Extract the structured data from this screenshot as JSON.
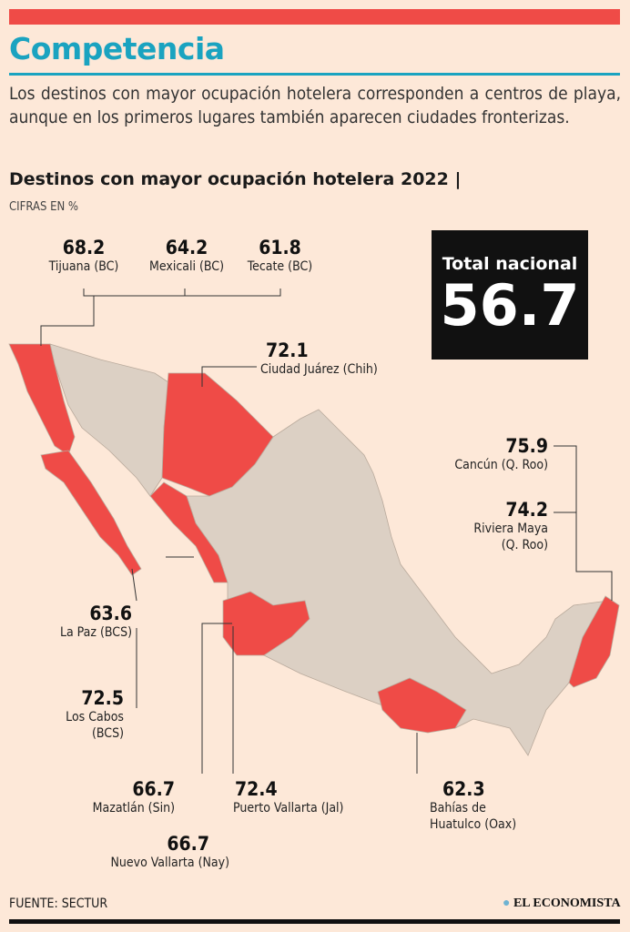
{
  "header": {
    "title": "Competencia",
    "intro": "Los destinos con mayor ocupación hotelera corresponden a centros de playa, aunque en los primeros lugares también aparecen ciudades fronterizas.",
    "subtitle": "Destinos con mayor ocupación hotelera 2022 |",
    "units": "CIFRAS EN %"
  },
  "total": {
    "label": "Total nacional",
    "value": "56.7"
  },
  "destinations": [
    {
      "value": "68.2",
      "name": "Tijuana (BC)"
    },
    {
      "value": "64.2",
      "name": "Mexicali (BC)"
    },
    {
      "value": "61.8",
      "name": "Tecate (BC)"
    },
    {
      "value": "72.1",
      "name": "Ciudad Juárez (Chih)"
    },
    {
      "value": "75.9",
      "name": "Cancún (Q. Roo)"
    },
    {
      "value": "74.2",
      "name": "Riviera Maya",
      "name2": "(Q. Roo)"
    },
    {
      "value": "63.6",
      "name": "La Paz (BCS)"
    },
    {
      "value": "72.5",
      "name": "Los Cabos",
      "name2": "(BCS)"
    },
    {
      "value": "66.7",
      "name": "Mazatlán (Sin)"
    },
    {
      "value": "72.4",
      "name": "Puerto Vallarta (Jal)"
    },
    {
      "value": "66.7",
      "name": "Nuevo Vallarta (Nay)"
    },
    {
      "value": "62.3",
      "name": "Bahías de",
      "name2": "Huatulco (Oax)"
    }
  ],
  "colors": {
    "highlight": "#ef4b47",
    "land": "#dcd0c4",
    "accent": "#1aa3c0"
  },
  "footer": {
    "source": "FUENTE: SECTUR",
    "brand": "EL ECONOMISTA"
  }
}
